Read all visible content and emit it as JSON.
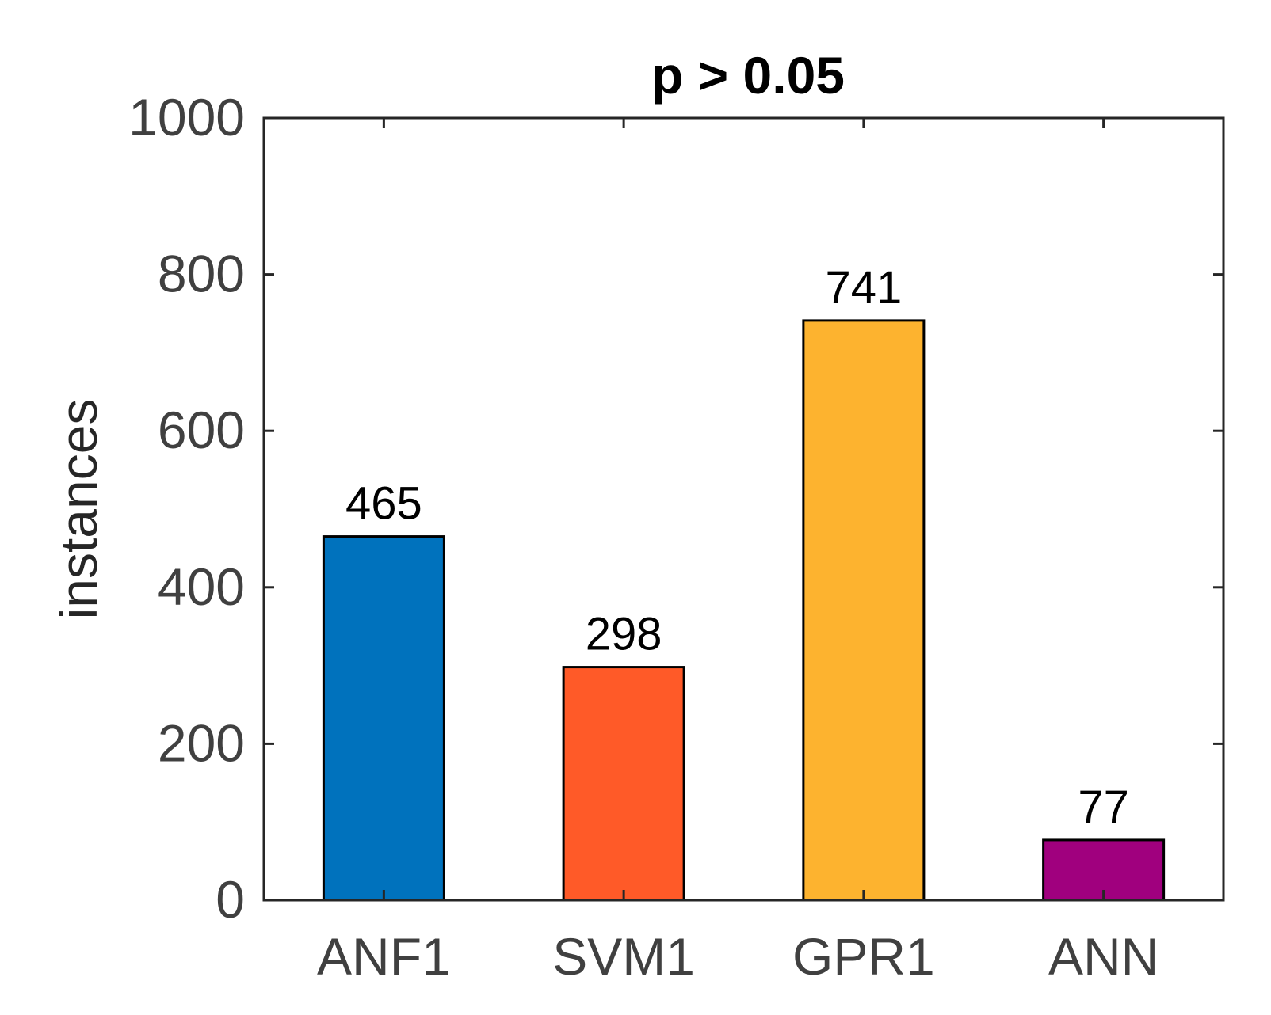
{
  "chart_data": {
    "type": "bar",
    "title": "p > 0.05",
    "xlabel": "",
    "ylabel": "instances",
    "categories": [
      "ANF1",
      "SVM1",
      "GPR1",
      "ANN"
    ],
    "values": [
      465,
      298,
      741,
      77
    ],
    "data_labels": [
      "465",
      "298",
      "741",
      "77"
    ],
    "colors": [
      "#0072BD",
      "#FF5A28",
      "#FDB32F",
      "#A0007E"
    ],
    "ylim": [
      0,
      1000
    ],
    "yticks": [
      0,
      200,
      400,
      600,
      800,
      1000
    ],
    "ytick_labels": [
      "0",
      "200",
      "400",
      "600",
      "800",
      "1000"
    ],
    "grid": false,
    "legend": null
  },
  "style": {
    "axis_color": "#262626",
    "tick_label_color": "#404040",
    "title_color": "#000000",
    "data_label_color": "#000000",
    "bar_edge_color": "#000000"
  }
}
